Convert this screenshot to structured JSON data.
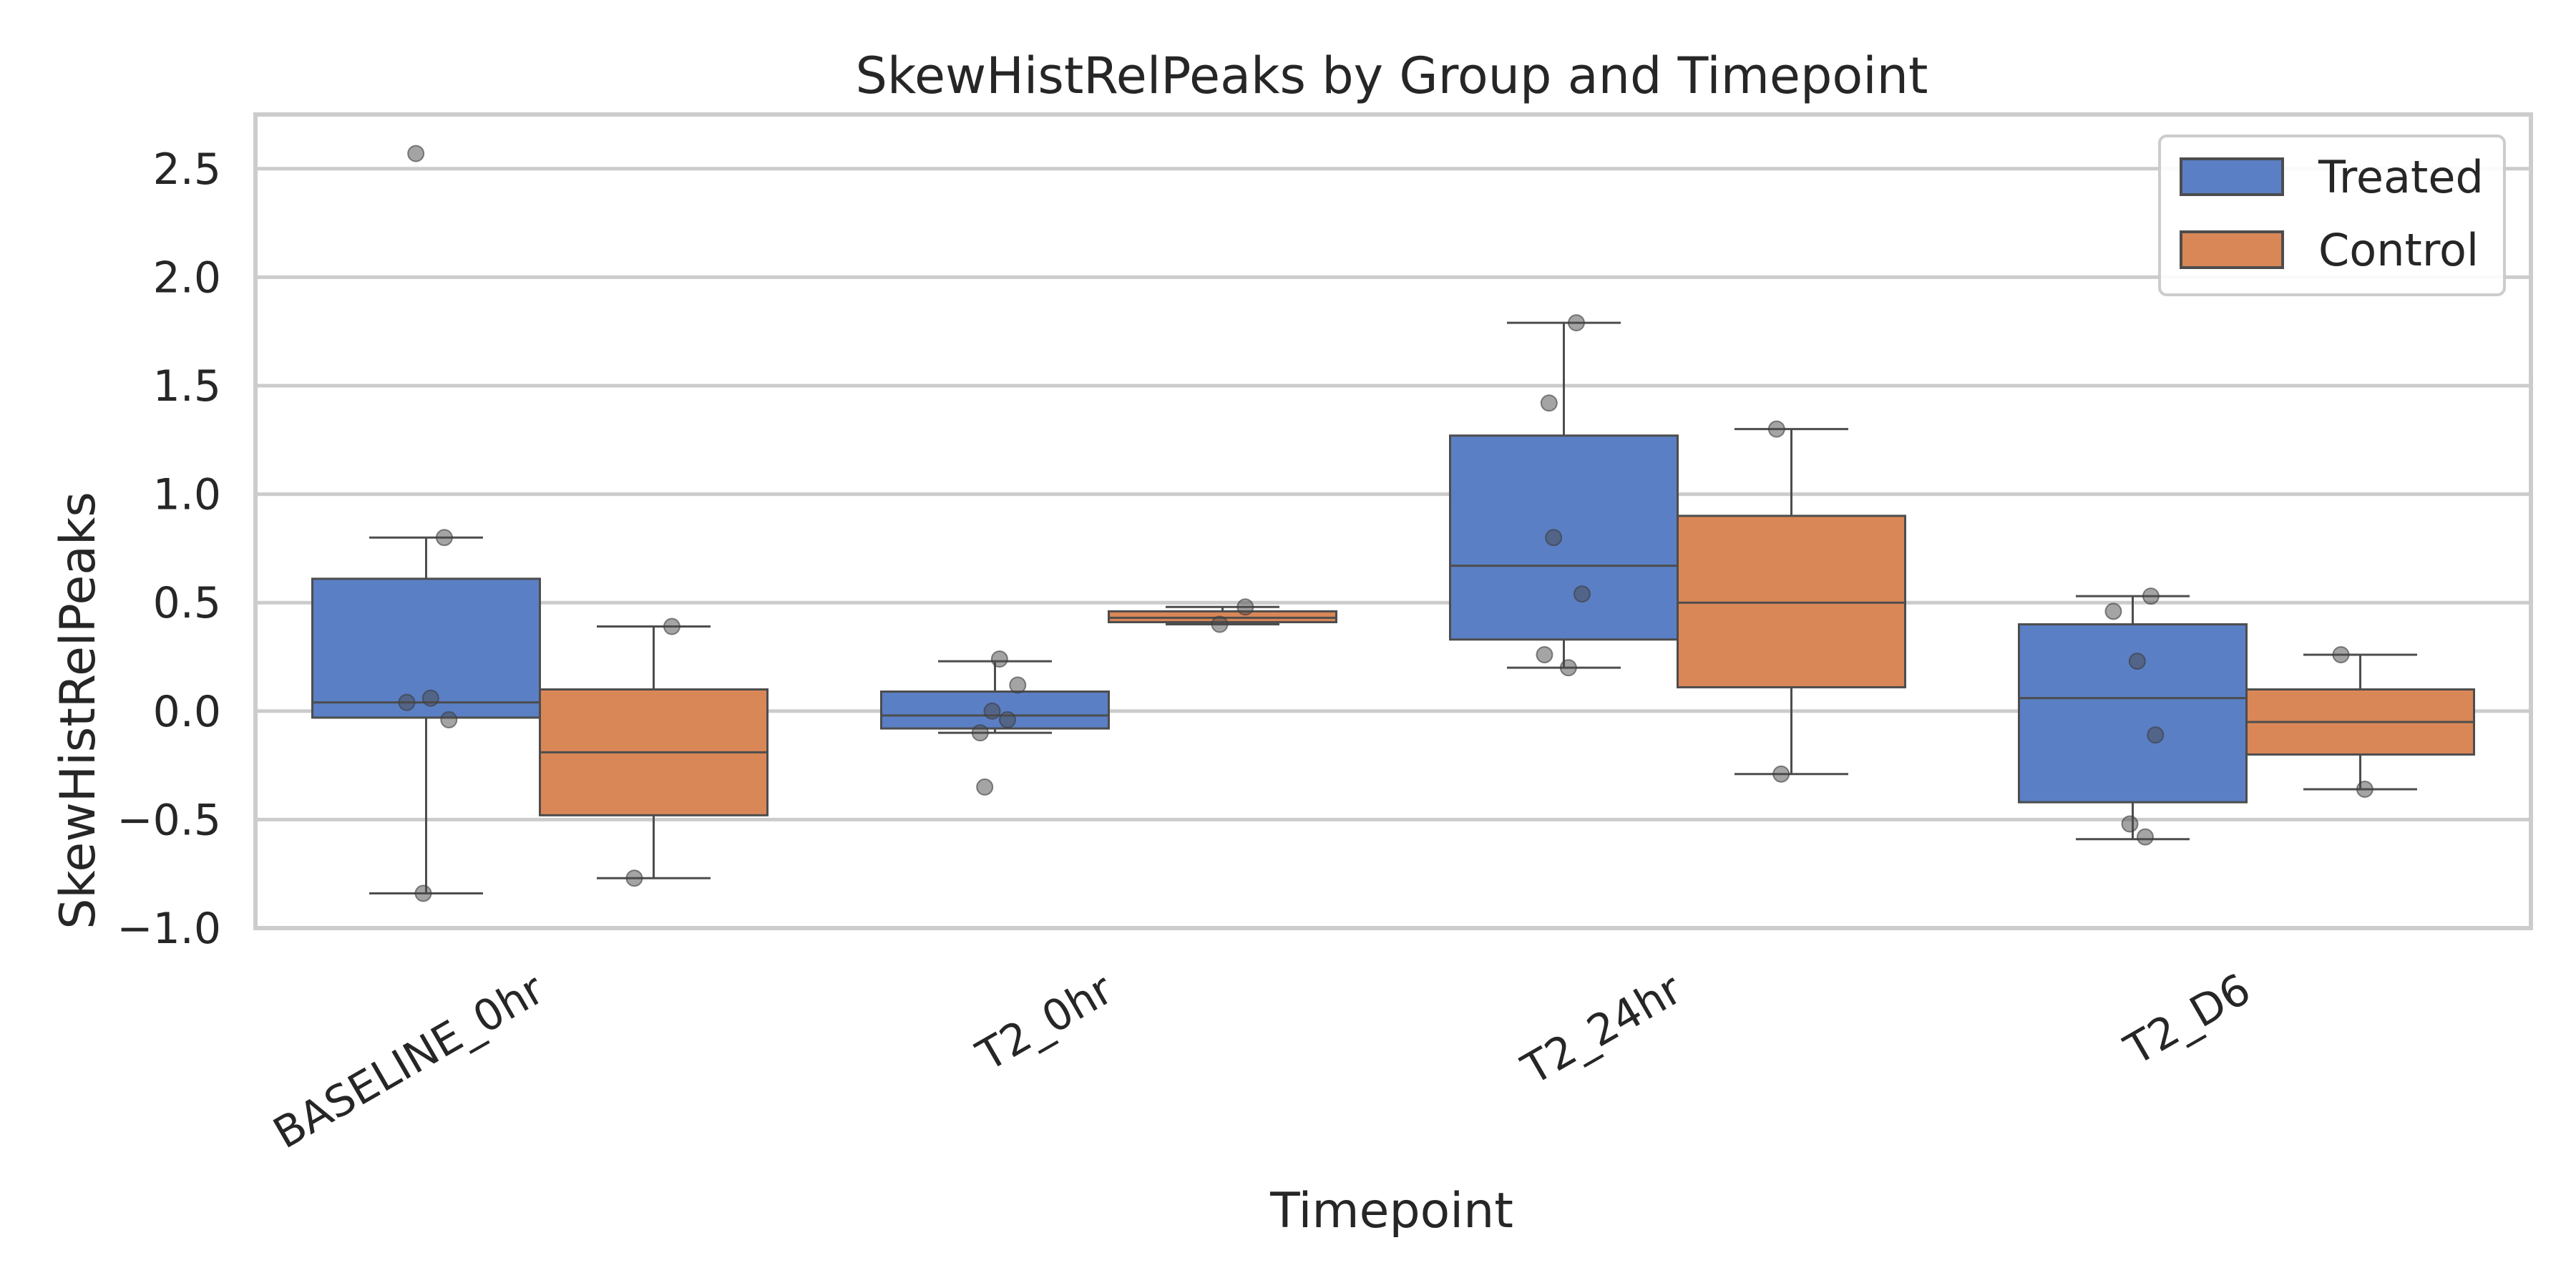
{
  "chart_data": {
    "type": "box",
    "title": "SkewHistRelPeaks by Group and Timepoint",
    "xlabel": "Timepoint",
    "ylabel": "SkewHistRelPeaks",
    "ylim": [
      -1.0,
      2.75
    ],
    "yticks": [
      -1.0,
      -0.5,
      0.0,
      0.5,
      1.0,
      1.5,
      2.0,
      2.5
    ],
    "ytick_labels": [
      "−1.0",
      "−0.5",
      "0.0",
      "0.5",
      "1.0",
      "1.5",
      "2.0",
      "2.5"
    ],
    "categories": [
      "BASELINE_0hr",
      "T2_0hr",
      "T2_24hr",
      "T2_D6"
    ],
    "grid": true,
    "legend_position": "top-right",
    "series": [
      {
        "name": "Treated",
        "color": "#5a7fc4",
        "boxes": [
          {
            "whislo": -0.84,
            "q1": -0.03,
            "med": 0.04,
            "q3": 0.61,
            "whishi": 0.8
          },
          {
            "whislo": -0.1,
            "q1": -0.08,
            "med": -0.02,
            "q3": 0.09,
            "whishi": 0.23
          },
          {
            "whislo": 0.2,
            "q1": 0.33,
            "med": 0.67,
            "q3": 1.27,
            "whishi": 1.79
          },
          {
            "whislo": -0.59,
            "q1": -0.42,
            "med": 0.06,
            "q3": 0.4,
            "whishi": 0.53
          }
        ],
        "points": [
          [
            2.57,
            0.8,
            0.04,
            0.06,
            -0.04,
            -0.84
          ],
          [
            0.24,
            0.12,
            0.0,
            -0.04,
            -0.1,
            -0.35
          ],
          [
            1.79,
            1.42,
            0.8,
            0.54,
            0.26,
            0.2
          ],
          [
            0.53,
            0.46,
            0.23,
            -0.11,
            -0.52,
            -0.58
          ]
        ]
      },
      {
        "name": "Control",
        "color": "#da8757",
        "boxes": [
          {
            "whislo": -0.77,
            "q1": -0.48,
            "med": -0.19,
            "q3": 0.1,
            "whishi": 0.39
          },
          {
            "whislo": 0.4,
            "q1": 0.41,
            "med": 0.43,
            "q3": 0.46,
            "whishi": 0.48
          },
          {
            "whislo": -0.29,
            "q1": 0.11,
            "med": 0.5,
            "q3": 0.9,
            "whishi": 1.3
          },
          {
            "whislo": -0.36,
            "q1": -0.2,
            "med": -0.05,
            "q3": 0.1,
            "whishi": 0.26
          }
        ],
        "points": [
          [
            0.39,
            -0.77
          ],
          [
            0.48,
            0.4
          ],
          [
            1.3,
            -0.29
          ],
          [
            0.26,
            -0.36
          ]
        ]
      }
    ]
  }
}
